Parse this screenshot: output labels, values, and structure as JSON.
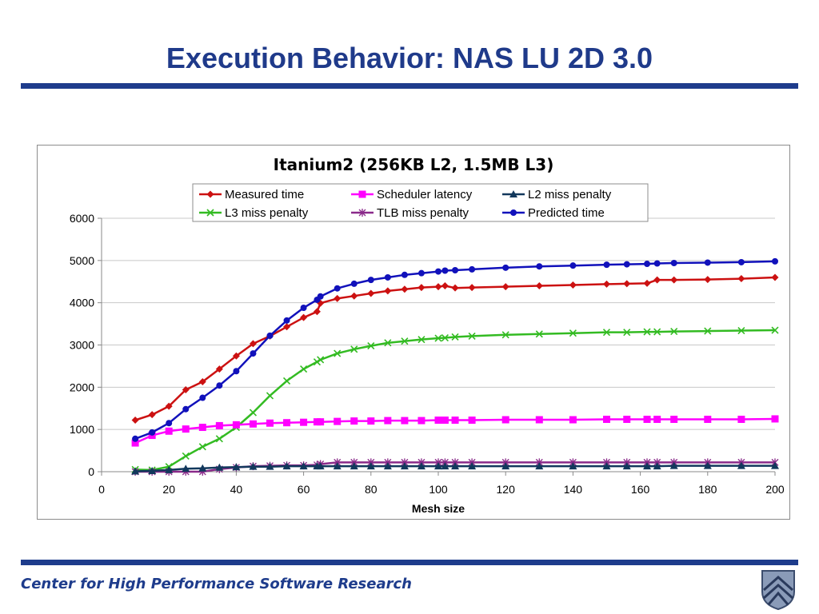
{
  "slide": {
    "title": "Execution Behavior: NAS LU 2D 3.0",
    "footer": "Center for High Performance Software Research"
  },
  "icons": {
    "logo": "university-shield-icon"
  },
  "colors": {
    "brand": "#1e3c8c"
  },
  "chart_data": {
    "type": "line",
    "title": "Itanium2 (256KB L2, 1.5MB L3)",
    "xlabel": "Mesh size",
    "ylabel": "",
    "xlim": [
      0,
      200
    ],
    "ylim": [
      0,
      6000
    ],
    "xticks": [
      0,
      20,
      40,
      60,
      80,
      100,
      120,
      140,
      160,
      180,
      200
    ],
    "yticks": [
      0,
      1000,
      2000,
      3000,
      4000,
      5000,
      6000
    ],
    "grid": "horizontal",
    "legend_position": "top",
    "x": [
      10,
      15,
      20,
      25,
      30,
      35,
      40,
      45,
      50,
      55,
      60,
      64,
      65,
      70,
      75,
      80,
      85,
      90,
      95,
      100,
      102,
      105,
      110,
      120,
      130,
      140,
      150,
      156,
      162,
      165,
      170,
      180,
      190,
      200
    ],
    "series": [
      {
        "name": "Measured time",
        "color": "#cc1111",
        "marker": "diamond",
        "values": [
          1220,
          1350,
          1550,
          1940,
          2130,
          2430,
          2740,
          3030,
          3210,
          3430,
          3650,
          3790,
          3990,
          4100,
          4160,
          4220,
          4280,
          4320,
          4360,
          4380,
          4400,
          4350,
          4360,
          4380,
          4400,
          4420,
          4440,
          4450,
          4460,
          4540,
          4540,
          4550,
          4570,
          4600
        ]
      },
      {
        "name": "Scheduler latency",
        "color": "#ff00ff",
        "marker": "square",
        "values": [
          680,
          860,
          960,
          1010,
          1050,
          1090,
          1110,
          1130,
          1150,
          1160,
          1170,
          1180,
          1180,
          1190,
          1200,
          1200,
          1210,
          1210,
          1210,
          1220,
          1220,
          1220,
          1220,
          1230,
          1230,
          1230,
          1240,
          1240,
          1240,
          1240,
          1240,
          1240,
          1240,
          1250
        ]
      },
      {
        "name": "L2 miss penalty",
        "color": "#12385c",
        "marker": "triangle",
        "values": [
          10,
          20,
          40,
          70,
          80,
          100,
          110,
          120,
          120,
          130,
          130,
          130,
          130,
          130,
          130,
          130,
          130,
          130,
          130,
          130,
          130,
          130,
          130,
          130,
          130,
          130,
          130,
          130,
          130,
          130,
          140,
          140,
          140,
          140
        ]
      },
      {
        "name": "L3 miss penalty",
        "color": "#33bb22",
        "marker": "x",
        "values": [
          50,
          40,
          120,
          370,
          590,
          780,
          1050,
          1400,
          1800,
          2150,
          2430,
          2600,
          2650,
          2800,
          2900,
          2980,
          3050,
          3090,
          3130,
          3160,
          3170,
          3190,
          3210,
          3240,
          3260,
          3280,
          3300,
          3300,
          3310,
          3310,
          3320,
          3330,
          3340,
          3350
        ]
      },
      {
        "name": "TLB miss penalty",
        "color": "#8a2a8a",
        "marker": "star",
        "values": [
          0,
          0,
          0,
          0,
          0,
          60,
          100,
          130,
          140,
          150,
          150,
          160,
          180,
          220,
          220,
          220,
          220,
          220,
          220,
          220,
          220,
          220,
          220,
          220,
          220,
          220,
          220,
          220,
          220,
          220,
          220,
          220,
          220,
          220
        ]
      },
      {
        "name": "Predicted time",
        "color": "#1111bb",
        "marker": "circle",
        "values": [
          780,
          930,
          1150,
          1480,
          1750,
          2040,
          2380,
          2800,
          3220,
          3580,
          3880,
          4070,
          4150,
          4340,
          4450,
          4540,
          4600,
          4660,
          4700,
          4740,
          4760,
          4770,
          4790,
          4830,
          4860,
          4880,
          4900,
          4910,
          4920,
          4930,
          4940,
          4950,
          4960,
          4980
        ]
      }
    ]
  }
}
